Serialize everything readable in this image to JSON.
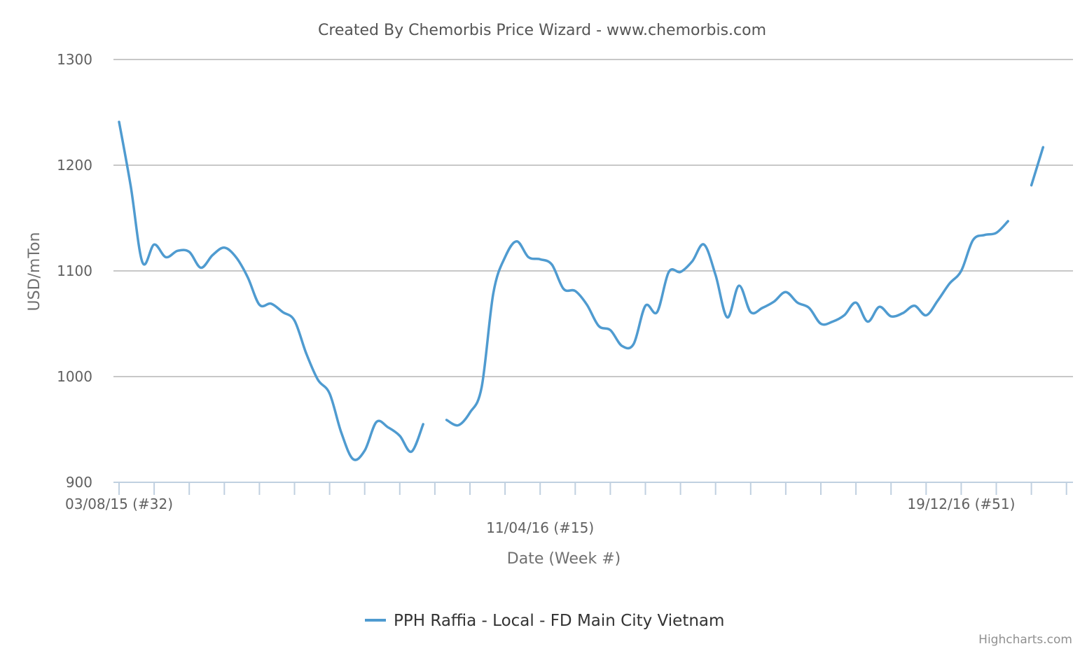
{
  "chart_data": {
    "type": "line",
    "title": "Created By Chemorbis Price Wizard - www.chemorbis.com",
    "xlabel": "Date (Week #)",
    "ylabel": "USD/mTon",
    "ylim": [
      900,
      1300
    ],
    "yticks": [
      900,
      1000,
      1100,
      1200,
      1300
    ],
    "grid": true,
    "legend_position": "bottom-center",
    "x_tick_labels": [
      {
        "label": "03/08/15 (#32)",
        "week": 0
      },
      {
        "label": "11/04/16 (#15)",
        "week": 36
      },
      {
        "label": "19/12/16 (#51)",
        "week": 72
      }
    ],
    "x_week_count": 78,
    "series": [
      {
        "name": "PPH Raffia - Local - FD Main City Vietnam",
        "color": "#4f9bd0",
        "x_unit": "weeks since 03/08/15",
        "segments": [
          [
            [
              0,
              1241
            ],
            [
              1,
              1180
            ],
            [
              2,
              1108
            ],
            [
              3,
              1125
            ],
            [
              4,
              1113
            ],
            [
              5,
              1119
            ],
            [
              6,
              1118
            ],
            [
              7,
              1103
            ],
            [
              8,
              1115
            ],
            [
              9,
              1122
            ],
            [
              10,
              1113
            ],
            [
              11,
              1094
            ],
            [
              12,
              1068
            ],
            [
              13,
              1069
            ],
            [
              14,
              1061
            ],
            [
              15,
              1053
            ],
            [
              16,
              1022
            ],
            [
              17,
              997
            ],
            [
              18,
              984
            ],
            [
              19,
              947
            ],
            [
              20,
              922
            ],
            [
              21,
              930
            ],
            [
              22,
              957
            ],
            [
              23,
              952
            ],
            [
              24,
              944
            ],
            [
              25,
              929
            ],
            [
              26,
              955
            ]
          ],
          [
            [
              28,
              959
            ],
            [
              29,
              954
            ],
            [
              30,
              966
            ],
            [
              31,
              990
            ],
            [
              32,
              1079
            ],
            [
              33,
              1113
            ],
            [
              34,
              1128
            ],
            [
              35,
              1113
            ],
            [
              36,
              1111
            ],
            [
              37,
              1106
            ],
            [
              38,
              1083
            ],
            [
              39,
              1081
            ],
            [
              40,
              1068
            ],
            [
              41,
              1048
            ],
            [
              42,
              1044
            ],
            [
              43,
              1029
            ],
            [
              44,
              1031
            ],
            [
              45,
              1067
            ],
            [
              46,
              1061
            ],
            [
              47,
              1099
            ],
            [
              48,
              1099
            ],
            [
              49,
              1109
            ],
            [
              50,
              1125
            ],
            [
              51,
              1096
            ],
            [
              52,
              1056
            ],
            [
              53,
              1086
            ],
            [
              54,
              1061
            ],
            [
              55,
              1065
            ],
            [
              56,
              1071
            ],
            [
              57,
              1080
            ],
            [
              58,
              1070
            ],
            [
              59,
              1065
            ],
            [
              60,
              1050
            ],
            [
              61,
              1052
            ],
            [
              62,
              1058
            ],
            [
              63,
              1070
            ],
            [
              64,
              1052
            ],
            [
              65,
              1066
            ],
            [
              66,
              1057
            ],
            [
              67,
              1060
            ],
            [
              68,
              1067
            ],
            [
              69,
              1058
            ],
            [
              70,
              1072
            ],
            [
              71,
              1088
            ],
            [
              72,
              1100
            ],
            [
              73,
              1129
            ],
            [
              74,
              1134
            ],
            [
              75,
              1136
            ],
            [
              76,
              1147
            ]
          ],
          [
            [
              78,
              1181
            ],
            [
              79,
              1217
            ]
          ]
        ]
      }
    ],
    "credits": "Highcharts.com"
  }
}
